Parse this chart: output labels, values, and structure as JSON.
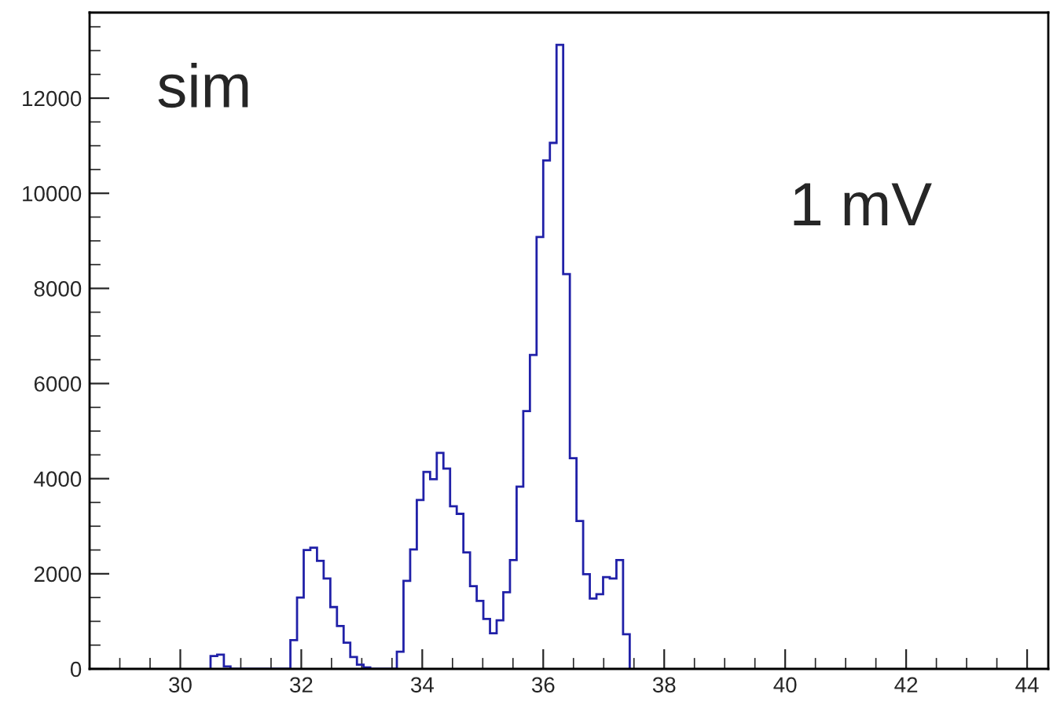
{
  "chart_data": {
    "type": "histogram",
    "bins": [
      30.5,
      30.61,
      30.72,
      30.83,
      30.94,
      31.05,
      31.16,
      31.27,
      31.38,
      31.49,
      31.6,
      31.71,
      31.82,
      31.93,
      32.04,
      32.15,
      32.26,
      32.37,
      32.48,
      32.59,
      32.7,
      32.81,
      32.92,
      33.03,
      33.14,
      33.25,
      33.36,
      33.47,
      33.58,
      33.69,
      33.8,
      33.91,
      34.02,
      34.13,
      34.24,
      34.35,
      34.46,
      34.57,
      34.68,
      34.79,
      34.9,
      35.01,
      35.12,
      35.23,
      35.34,
      35.45,
      35.56,
      35.67,
      35.78,
      35.89,
      36.0,
      36.11,
      36.22,
      36.33,
      36.44,
      36.55,
      36.66,
      36.77,
      36.88,
      36.99,
      37.1,
      37.21,
      37.32,
      37.43
    ],
    "values": [
      270,
      300,
      50,
      0,
      0,
      0,
      0,
      0,
      0,
      0,
      0,
      0,
      605,
      1500,
      2500,
      2550,
      2270,
      1900,
      1300,
      900,
      550,
      250,
      90,
      30,
      0,
      0,
      0,
      0,
      360,
      1850,
      2510,
      3550,
      4140,
      3990,
      4540,
      4210,
      3420,
      3260,
      2450,
      1740,
      1430,
      1050,
      750,
      1020,
      1610,
      2290,
      3830,
      5420,
      6600,
      9080,
      10690,
      11060,
      13120,
      8300,
      4430,
      3110,
      1990,
      1480,
      1570,
      1930,
      1900,
      2290,
      730
    ],
    "color": "#2020a8",
    "xlim": [
      28.5,
      44.35
    ],
    "ylim": [
      0,
      13800
    ],
    "xticks": [
      30,
      32,
      34,
      36,
      38,
      40,
      42,
      44
    ],
    "yticks": [
      0,
      2000,
      4000,
      6000,
      8000,
      10000,
      12000
    ],
    "annotations": [
      "sim",
      "1 mV"
    ],
    "grid": false,
    "legend": false
  }
}
